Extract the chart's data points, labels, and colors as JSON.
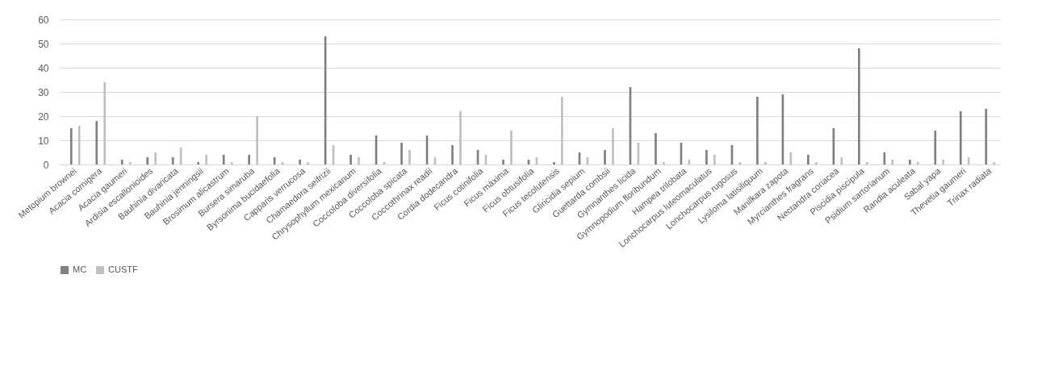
{
  "chart_data": {
    "type": "bar",
    "categories": [
      "Metopium brownei",
      "Acacia cornigera",
      "Acacia gaumeri",
      "Ardisia escallonioides",
      "Bauhinia divaricata",
      "Bauhinia jenningsii",
      "Brosimum alicastrum",
      "Bursera simaruba",
      "Byrsonima bucidaefolia",
      "Capparis verrucosa",
      "Chamaedora seifrizii",
      "Chrysophyllum mexicanum",
      "Coccoloba diversifolia",
      "Coccoloba spicata",
      "Coccothrinax readii",
      "Cordia dodecandra",
      "Ficus cotinifolia",
      "Ficus máxima",
      "Ficus obtusifolia",
      "Ficus tecolutensis",
      "Gliricidia sepium",
      "Guettarda combsii",
      "Gymnanthes licida",
      "Gymnopodium floribundum",
      "Hampea trilobata",
      "Lonchocarpus luteomaculatus",
      "Lonchocarpus rugosus",
      "Lysiloma latisiliquum",
      "Manilkara zapota",
      "Myrcianthes fragrans",
      "Nectandra coriacea",
      "Piscidia piscipula",
      "Psidium sartorianum",
      "Randia aculeata",
      "Sabal yapa",
      "Thevetia gaumeri",
      "Trinax radiata"
    ],
    "series": [
      {
        "name": "MC",
        "color": "#808080",
        "values": [
          15,
          18,
          2,
          3,
          3,
          1,
          4,
          4,
          3,
          2,
          53,
          4,
          12,
          9,
          12,
          8,
          6,
          2,
          2,
          1,
          5,
          6,
          32,
          13,
          9,
          6,
          8,
          28,
          29,
          4,
          15,
          48,
          5,
          2,
          14,
          22,
          23
        ]
      },
      {
        "name": "CUSTF",
        "color": "#bfbfbf",
        "values": [
          16,
          34,
          1,
          5,
          7,
          4,
          1,
          20,
          1,
          1,
          8,
          3,
          1,
          6,
          3,
          22,
          4,
          14,
          3,
          28,
          3,
          15,
          9,
          1,
          2,
          4,
          1,
          1,
          5,
          1,
          3,
          1,
          2,
          1,
          2,
          3,
          1
        ]
      }
    ],
    "ylim": [
      0,
      60
    ],
    "yticks": [
      0,
      10,
      20,
      30,
      40,
      50,
      60
    ],
    "grid": "y",
    "legend": "bottom"
  }
}
